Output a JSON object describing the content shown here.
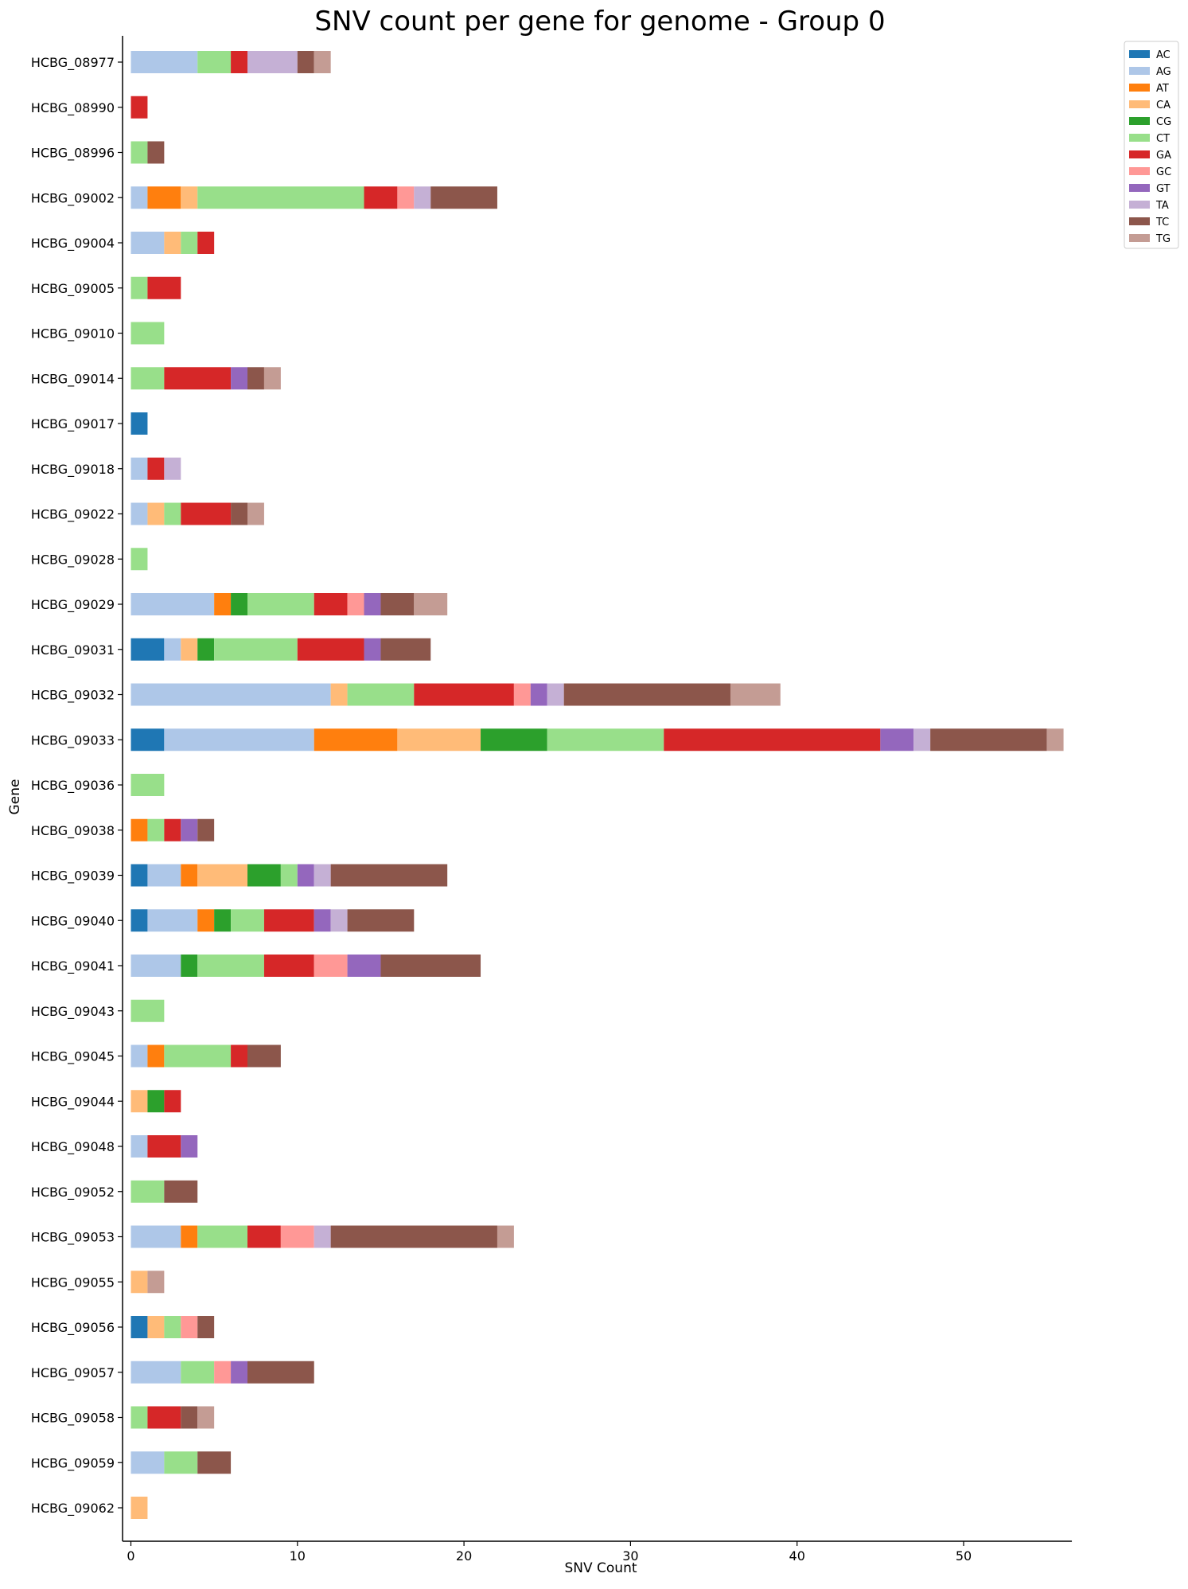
{
  "chart_data": {
    "type": "bar",
    "orientation": "horizontal",
    "stacked": true,
    "title": "SNV count per gene for genome - Group 0",
    "xlabel": "SNV Count",
    "ylabel": "Gene",
    "xlim": [
      -0.5,
      56.5
    ],
    "xticks": [
      0,
      10,
      20,
      30,
      40,
      50
    ],
    "grid": false,
    "legend_position": "top-right",
    "categories": [
      "HCBG_08977",
      "HCBG_08990",
      "HCBG_08996",
      "HCBG_09002",
      "HCBG_09004",
      "HCBG_09005",
      "HCBG_09010",
      "HCBG_09014",
      "HCBG_09017",
      "HCBG_09018",
      "HCBG_09022",
      "HCBG_09028",
      "HCBG_09029",
      "HCBG_09031",
      "HCBG_09032",
      "HCBG_09033",
      "HCBG_09036",
      "HCBG_09038",
      "HCBG_09039",
      "HCBG_09040",
      "HCBG_09041",
      "HCBG_09043",
      "HCBG_09045",
      "HCBG_09044",
      "HCBG_09048",
      "HCBG_09052",
      "HCBG_09053",
      "HCBG_09055",
      "HCBG_09056",
      "HCBG_09057",
      "HCBG_09058",
      "HCBG_09059",
      "HCBG_09062"
    ],
    "series": [
      {
        "name": "AC",
        "color": "#1f77b4",
        "values": [
          0,
          0,
          0,
          0,
          0,
          0,
          0,
          0,
          1,
          0,
          0,
          0,
          0,
          2,
          0,
          2,
          0,
          0,
          1,
          1,
          0,
          0,
          0,
          0,
          0,
          0,
          0,
          0,
          1,
          0,
          0,
          0,
          0
        ]
      },
      {
        "name": "AG",
        "color": "#aec7e8",
        "values": [
          4,
          0,
          0,
          1,
          2,
          0,
          0,
          0,
          0,
          1,
          1,
          0,
          5,
          1,
          12,
          9,
          0,
          0,
          2,
          3,
          3,
          0,
          1,
          0,
          1,
          0,
          3,
          0,
          0,
          3,
          0,
          2,
          0
        ]
      },
      {
        "name": "AT",
        "color": "#ff7f0e",
        "values": [
          0,
          0,
          0,
          2,
          0,
          0,
          0,
          0,
          0,
          0,
          0,
          0,
          1,
          0,
          0,
          5,
          0,
          1,
          1,
          1,
          0,
          0,
          1,
          0,
          0,
          0,
          1,
          0,
          0,
          0,
          0,
          0,
          0
        ]
      },
      {
        "name": "CA",
        "color": "#ffbb78",
        "values": [
          0,
          0,
          0,
          1,
          1,
          0,
          0,
          0,
          0,
          0,
          1,
          0,
          0,
          1,
          1,
          5,
          0,
          0,
          3,
          0,
          0,
          0,
          0,
          1,
          0,
          0,
          0,
          1,
          1,
          0,
          0,
          0,
          1
        ]
      },
      {
        "name": "CG",
        "color": "#2ca02c",
        "values": [
          0,
          0,
          0,
          0,
          0,
          0,
          0,
          0,
          0,
          0,
          0,
          0,
          1,
          1,
          0,
          4,
          0,
          0,
          2,
          1,
          1,
          0,
          0,
          1,
          0,
          0,
          0,
          0,
          0,
          0,
          0,
          0,
          0
        ]
      },
      {
        "name": "CT",
        "color": "#98df8a",
        "values": [
          2,
          0,
          1,
          10,
          1,
          1,
          2,
          2,
          0,
          0,
          1,
          1,
          4,
          5,
          4,
          7,
          2,
          1,
          1,
          2,
          4,
          2,
          4,
          0,
          0,
          2,
          3,
          0,
          1,
          2,
          1,
          2,
          0
        ]
      },
      {
        "name": "GA",
        "color": "#d62728",
        "values": [
          1,
          1,
          0,
          2,
          1,
          2,
          0,
          4,
          0,
          1,
          3,
          0,
          2,
          4,
          6,
          13,
          0,
          1,
          0,
          3,
          3,
          0,
          1,
          1,
          2,
          0,
          2,
          0,
          0,
          0,
          2,
          0,
          0
        ]
      },
      {
        "name": "GC",
        "color": "#ff9896",
        "values": [
          0,
          0,
          0,
          1,
          0,
          0,
          0,
          0,
          0,
          0,
          0,
          0,
          1,
          0,
          1,
          0,
          0,
          0,
          0,
          0,
          2,
          0,
          0,
          0,
          0,
          0,
          2,
          0,
          1,
          1,
          0,
          0,
          0
        ]
      },
      {
        "name": "GT",
        "color": "#9467bd",
        "values": [
          0,
          0,
          0,
          0,
          0,
          0,
          0,
          1,
          0,
          0,
          0,
          0,
          1,
          1,
          1,
          2,
          0,
          1,
          1,
          1,
          2,
          0,
          0,
          0,
          1,
          0,
          0,
          0,
          0,
          1,
          0,
          0,
          0
        ]
      },
      {
        "name": "TA",
        "color": "#c5b0d5",
        "values": [
          3,
          0,
          0,
          1,
          0,
          0,
          0,
          0,
          0,
          1,
          0,
          0,
          0,
          0,
          1,
          1,
          0,
          0,
          1,
          1,
          0,
          0,
          0,
          0,
          0,
          0,
          1,
          0,
          0,
          0,
          0,
          0,
          0
        ]
      },
      {
        "name": "TC",
        "color": "#8c564b",
        "values": [
          1,
          0,
          1,
          4,
          0,
          0,
          0,
          1,
          0,
          0,
          1,
          0,
          2,
          3,
          10,
          7,
          0,
          1,
          7,
          4,
          6,
          0,
          2,
          0,
          0,
          2,
          10,
          0,
          1,
          4,
          1,
          2,
          0
        ]
      },
      {
        "name": "TG",
        "color": "#c49c94",
        "values": [
          1,
          0,
          0,
          0,
          0,
          0,
          0,
          1,
          0,
          0,
          1,
          0,
          2,
          0,
          3,
          1,
          0,
          0,
          0,
          0,
          0,
          0,
          0,
          0,
          0,
          0,
          1,
          1,
          0,
          0,
          1,
          0,
          0
        ]
      }
    ]
  }
}
